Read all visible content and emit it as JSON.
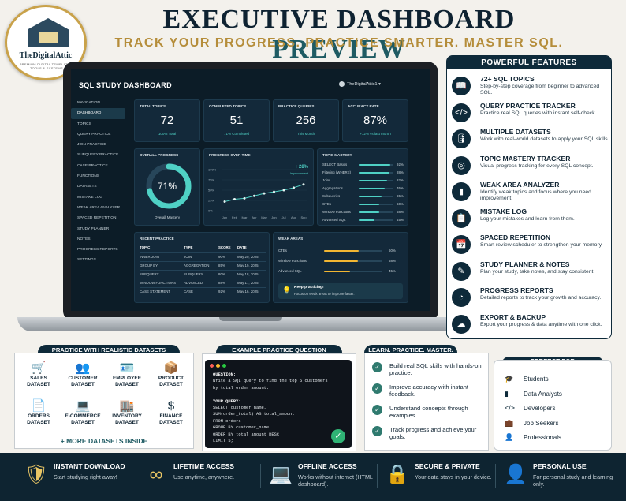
{
  "header": {
    "title_part1": "EXECUTIVE DASHBOARD",
    "title_part2": "PREVIEW",
    "subtitle": "TRACK YOUR PROGRESS. PRACTICE SMARTER. MASTER SQL.",
    "logo_text": "TheDigitalAttic",
    "logo_tagline": "PREMIUM DIGITAL TEMPLATES, TOOLS & SYSTEMS"
  },
  "dashboard": {
    "title": "SQL STUDY DASHBOARD",
    "user": "TheDigitalAttic1",
    "nav": [
      "NAVIGATION",
      "DASHBOARD",
      "TOPICS",
      "QUERY PRACTICE",
      "JOIN PRACTICE",
      "SUBQUERY PRACTICE",
      "CASE PRACTICE",
      "FUNCTIONS",
      "DATASETS",
      "MISTAKE LOG",
      "WEAK AREA ANALYZER",
      "SPACED REPETITION",
      "STUDY PLANNER",
      "NOTES",
      "PROGRESS REPORTS",
      "SETTINGS"
    ],
    "stats": [
      {
        "label": "TOTAL TOPICS",
        "value": "72",
        "sub": "100% Total"
      },
      {
        "label": "COMPLETED TOPICS",
        "value": "51",
        "sub": "71% Completed"
      },
      {
        "label": "PRACTICE QUERIES",
        "value": "256",
        "sub": "This Month"
      },
      {
        "label": "ACCURACY RATE",
        "value": "87%",
        "sub": "+12% vs last month"
      }
    ],
    "overall": {
      "label": "OVERALL PROGRESS",
      "value": "71%",
      "percent": 71,
      "caption": "Overall Mastery"
    },
    "progress_chart": {
      "label": "PROGRESS OVER TIME",
      "delta": "↑ 28%",
      "delta_caption": "Improvement",
      "y_ticks": [
        "100%",
        "75%",
        "50%",
        "25%",
        "0%"
      ],
      "x": [
        "Jan",
        "Feb",
        "Mar",
        "Apr",
        "May",
        "Jun",
        "Jul",
        "Aug",
        "Sep"
      ],
      "values": [
        22,
        28,
        30,
        36,
        42,
        46,
        50,
        56,
        64
      ]
    },
    "topic_mastery": {
      "label": "TOPIC MASTERY",
      "items": [
        {
          "name": "SELECT Basics",
          "value": 92
        },
        {
          "name": "Filtering (WHERE)",
          "value": 88
        },
        {
          "name": "Joins",
          "value": 82
        },
        {
          "name": "Aggregations",
          "value": 76
        },
        {
          "name": "Subqueries",
          "value": 65
        },
        {
          "name": "CTEs",
          "value": 60
        },
        {
          "name": "Window Functions",
          "value": 58
        },
        {
          "name": "Advanced SQL",
          "value": 45
        }
      ]
    },
    "recent": {
      "label": "RECENT PRACTICE",
      "headers": [
        "TOPIC",
        "TYPE",
        "SCORE",
        "DATE"
      ],
      "rows": [
        [
          "INNER JOIN",
          "JOIN",
          "90%",
          "May 20, 2025"
        ],
        [
          "GROUP BY",
          "AGGREGATION",
          "85%",
          "May 19, 2025"
        ],
        [
          "SUBQUERY",
          "SUBQUERY",
          "80%",
          "May 18, 2025"
        ],
        [
          "WINDOW FUNCTIONS",
          "ADVANCED",
          "88%",
          "May 17, 2025"
        ],
        [
          "CASE STATEMENT",
          "CASE",
          "92%",
          "May 16, 2025"
        ]
      ]
    },
    "weak": {
      "label": "WEAK AREAS",
      "items": [
        {
          "name": "CTEs",
          "value": 60
        },
        {
          "name": "Window Functions",
          "value": 58
        },
        {
          "name": "Advanced SQL",
          "value": 45
        }
      ],
      "tip_title": "Keep practicing!",
      "tip_text": "Focus on weak areas to improve faster."
    }
  },
  "features": {
    "heading": "POWERFUL FEATURES",
    "items": [
      {
        "icon": "book-icon",
        "title": "72+ SQL TOPICS",
        "desc": "Step-by-step coverage from beginner to advanced SQL."
      },
      {
        "icon": "code-icon",
        "title": "QUERY PRACTICE TRACKER",
        "desc": "Practice real SQL queries with instant self-check."
      },
      {
        "icon": "database-icon",
        "title": "MULTIPLE DATASETS",
        "desc": "Work with real-world datasets to apply your SQL skills."
      },
      {
        "icon": "target-icon",
        "title": "TOPIC MASTERY TRACKER",
        "desc": "Visual progress tracking for every SQL concept."
      },
      {
        "icon": "bar-chart-icon",
        "title": "WEAK AREA ANALYZER",
        "desc": "Identify weak topics and focus where you need improvement."
      },
      {
        "icon": "clipboard-icon",
        "title": "MISTAKE LOG",
        "desc": "Log your mistakes and learn from them."
      },
      {
        "icon": "calendar-icon",
        "title": "SPACED REPETITION",
        "desc": "Smart review scheduler to strengthen your memory."
      },
      {
        "icon": "pencil-icon",
        "title": "STUDY PLANNER & NOTES",
        "desc": "Plan your study, take notes, and stay consistent."
      },
      {
        "icon": "pie-chart-icon",
        "title": "PROGRESS REPORTS",
        "desc": "Detailed reports to track your growth and accuracy."
      },
      {
        "icon": "cloud-icon",
        "title": "EXPORT & BACKUP",
        "desc": "Export your progress & data anytime with one click."
      }
    ]
  },
  "datasets": {
    "heading": "PRACTICE WITH REALISTIC DATASETS",
    "items": [
      {
        "icon": "cart-icon",
        "name": "SALES DATASET"
      },
      {
        "icon": "users-icon",
        "name": "CUSTOMER DATASET"
      },
      {
        "icon": "id-card-icon",
        "name": "EMPLOYEE DATASET"
      },
      {
        "icon": "box-icon",
        "name": "PRODUCT DATASET"
      },
      {
        "icon": "document-icon",
        "name": "ORDERS DATASET"
      },
      {
        "icon": "laptop-cart-icon",
        "name": "E-COMMERCE DATASET"
      },
      {
        "icon": "warehouse-icon",
        "name": "INVENTORY DATASET"
      },
      {
        "icon": "dollar-icon",
        "name": "FINANCE DATASET"
      }
    ],
    "more": "+ MORE DATASETS INSIDE"
  },
  "question": {
    "heading": "EXAMPLE PRACTICE QUESTION",
    "lines": [
      "QUESTION:",
      "Write a SQL query to find the top 5 customers",
      "by total order amount.",
      "",
      "YOUR QUERY:",
      "SELECT customer_name,",
      "  SUM(order_total) AS total_amount",
      "FROM orders",
      "GROUP BY customer_name",
      "ORDER BY total_amount DESC",
      "LIMIT 5;"
    ]
  },
  "learn": {
    "heading": "LEARN. PRACTICE. MASTER.",
    "items": [
      "Build real SQL skills with hands-on practice.",
      "Improve accuracy with instant feedback.",
      "Understand concepts through examples.",
      "Track progress and achieve your goals."
    ]
  },
  "perfect": {
    "heading": "PERFECT FOR",
    "items": [
      {
        "icon": "graduation-cap-icon",
        "label": "Students"
      },
      {
        "icon": "bar-chart-icon",
        "label": "Data Analysts"
      },
      {
        "icon": "code-icon",
        "label": "Developers"
      },
      {
        "icon": "briefcase-icon",
        "label": "Job Seekers"
      },
      {
        "icon": "person-icon",
        "label": "Professionals"
      }
    ]
  },
  "footer": [
    {
      "icon": "shield-check-icon",
      "title": "INSTANT DOWNLOAD",
      "desc": "Start studying right away!"
    },
    {
      "icon": "infinity-icon",
      "title": "LIFETIME ACCESS",
      "desc": "Use anytime, anywhere."
    },
    {
      "icon": "laptop-icon",
      "title": "OFFLINE ACCESS",
      "desc": "Works without internet (HTML dashboard)."
    },
    {
      "icon": "lock-icon",
      "title": "SECURE & PRIVATE",
      "desc": "Your data stays in your device."
    },
    {
      "icon": "person-icon",
      "title": "PERSONAL USE",
      "desc": "For personal study and learning only."
    }
  ],
  "colors": {
    "navy": "#0e2a3a",
    "gold": "#b58d3a",
    "teal": "#4fd1c5",
    "warn": "#f2b632"
  }
}
